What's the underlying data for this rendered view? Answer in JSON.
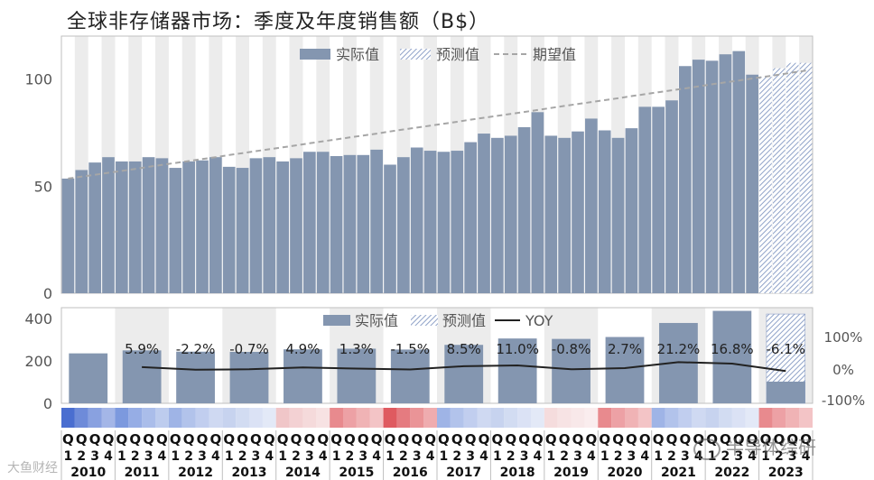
{
  "chart_data": [
    {
      "type": "bar",
      "title": "全球非存储器市场：季度及年度销售额（B$）",
      "unit": "B$",
      "ylim": [
        0,
        120
      ],
      "yticks": [
        0,
        50,
        100
      ],
      "legend": [
        "实际值",
        "预测值",
        "期望值"
      ],
      "legend_position": "top-center",
      "grid": false,
      "quarter_labels": [
        "Q\n1",
        "Q\n2",
        "Q\n3",
        "Q\n4"
      ],
      "years": [
        "2010",
        "2011",
        "2012",
        "2013",
        "2014",
        "2015",
        "2016",
        "2017",
        "2018",
        "2019",
        "2020",
        "2021",
        "2022",
        "2023"
      ],
      "series": [
        {
          "name": "实际值",
          "values": [
            53.5,
            57.5,
            61,
            63.5,
            61.5,
            61.5,
            63.5,
            63,
            58.5,
            61.5,
            62,
            63.5,
            59,
            58.5,
            63,
            63.5,
            61.5,
            63,
            66,
            66,
            64,
            64.5,
            64.5,
            67,
            60,
            63.5,
            68,
            66.5,
            66,
            66.5,
            70.5,
            74.5,
            72.5,
            73.5,
            77.5,
            84.5,
            73.5,
            72.5,
            75.5,
            81.5,
            76,
            72.5,
            77,
            87,
            87,
            90,
            106,
            109,
            108.5,
            111.5,
            113,
            102
          ]
        },
        {
          "name": "预测值",
          "values": [
            null,
            null,
            null,
            null,
            null,
            null,
            null,
            null,
            null,
            null,
            null,
            null,
            null,
            null,
            null,
            null,
            null,
            null,
            null,
            null,
            null,
            null,
            null,
            null,
            null,
            null,
            null,
            null,
            null,
            null,
            null,
            null,
            null,
            null,
            null,
            null,
            null,
            null,
            null,
            null,
            null,
            null,
            null,
            null,
            null,
            null,
            null,
            null,
            null,
            null,
            null,
            null,
            101,
            105,
            107.5,
            107.5
          ]
        },
        {
          "name": "期望值",
          "style": "dashed-line",
          "values": [
            53.5,
            54.4,
            55.3,
            56.2,
            57.1,
            58,
            59,
            59.9,
            60.8,
            61.7,
            62.6,
            63.5,
            64.5,
            65.4,
            66.3,
            67.2,
            68.1,
            69,
            70,
            70.9,
            71.8,
            72.7,
            73.6,
            74.5,
            75.5,
            76.4,
            77.3,
            78.2,
            79.1,
            80,
            81,
            81.9,
            82.8,
            83.7,
            84.6,
            85.5,
            86.5,
            87.4,
            88.3,
            89.2,
            90.1,
            91,
            92,
            92.9,
            93.8,
            94.7,
            95.6,
            96.5,
            97.5,
            98.4,
            99.3,
            100.2,
            101.1,
            102,
            103,
            103.9
          ]
        }
      ]
    },
    {
      "type": "bar",
      "subtype": "annual",
      "ylim": [
        0,
        450
      ],
      "yticks": [
        0,
        200,
        400
      ],
      "y2ticks": [
        "100%",
        "0%",
        "-100%"
      ],
      "legend": [
        "实际值",
        "预测值",
        "YOY"
      ],
      "legend_position": "top-center",
      "categories": [
        "2010",
        "2011",
        "2012",
        "2013",
        "2014",
        "2015",
        "2016",
        "2017",
        "2018",
        "2019",
        "2020",
        "2021",
        "2022",
        "2023"
      ],
      "actual": [
        235,
        249,
        243,
        242,
        254,
        257,
        253,
        275,
        305,
        303,
        312,
        378,
        435,
        102
      ],
      "forecast": [
        null,
        null,
        null,
        null,
        null,
        null,
        null,
        null,
        null,
        null,
        null,
        null,
        null,
        420
      ],
      "yoy": [
        null,
        5.9,
        -2.2,
        -0.7,
        4.9,
        1.3,
        -1.5,
        8.5,
        11.0,
        -0.8,
        2.7,
        21.2,
        16.8,
        -6.1
      ],
      "yoy_labels": [
        "",
        "5.9%",
        "-2.2%",
        "-0.7%",
        "4.9%",
        "1.3%",
        "-1.5%",
        "8.5%",
        "11.0%",
        "-0.8%",
        "2.7%",
        "21.2%",
        "16.8%",
        "-6.1%"
      ]
    }
  ],
  "heat_colors": [
    "#4a6ed0",
    "#7c99de",
    "#9fb4e6",
    "#c7d3ef",
    "#f0c6c8",
    "#e88a8e",
    "#df5a60",
    "#9fb4e6",
    "#c7d3ef",
    "#f5dcdd",
    "#e88a8e",
    "#9fb4e6",
    "#c7d3ef",
    "#e88a8e"
  ],
  "colors": {
    "actual": "#8496b0",
    "forecast": "#8fa2c8",
    "expected": "#a6a6a6",
    "yoy": "#222222",
    "stripe": "#ececec",
    "axis_text": "#555555"
  },
  "watermarks": {
    "left": "大鱼财经",
    "right": "半导体综研"
  }
}
